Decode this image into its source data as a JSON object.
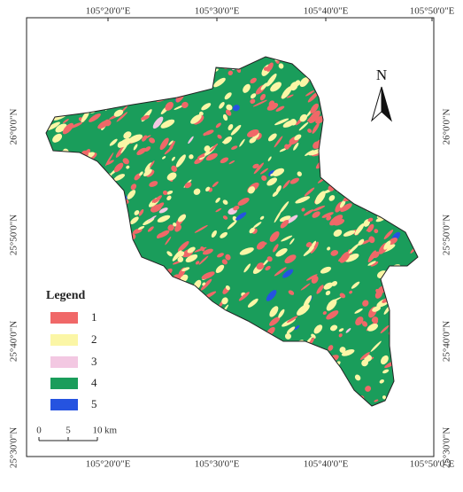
{
  "map": {
    "north_label": "N",
    "longitude_labels": [
      "105°20'0\"E",
      "105°30'0\"E",
      "105°40'0\"E",
      "105°50'0\"E"
    ],
    "latitude_labels": [
      "26°0'0\"N",
      "25°50'0\"N",
      "25°40'0\"N",
      "25°30'0\"N"
    ],
    "legend": {
      "title": "Legend",
      "items": [
        {
          "label": "1",
          "color": "#f06868"
        },
        {
          "label": "2",
          "color": "#fbf6a6"
        },
        {
          "label": "3",
          "color": "#f3c8e2"
        },
        {
          "label": "4",
          "color": "#1a9d5b"
        },
        {
          "label": "5",
          "color": "#2553e0"
        }
      ]
    },
    "scale_bar": {
      "labels": [
        "0",
        "5",
        "10"
      ],
      "unit": "km"
    }
  }
}
